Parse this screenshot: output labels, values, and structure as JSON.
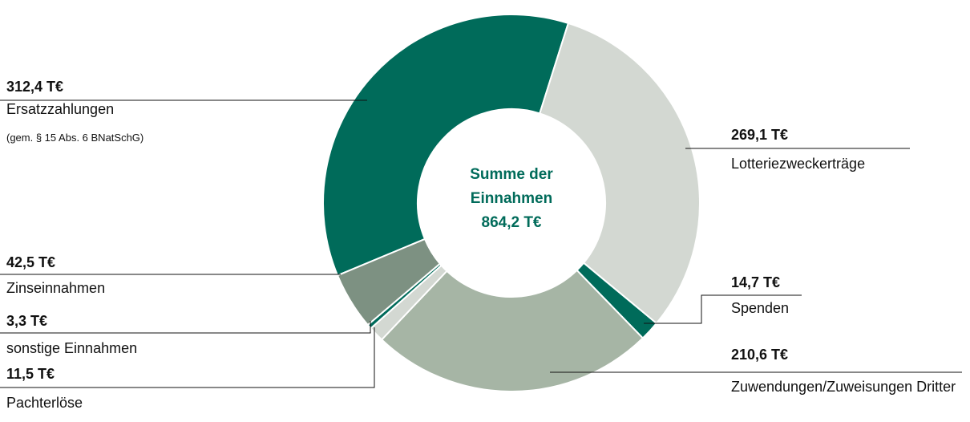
{
  "chart_data": {
    "type": "donut",
    "center_text": [
      "Summe der Einnahmen",
      "864,2 T€"
    ],
    "categories": [
      "Ersatzzahlungen",
      "Lotteriezweckerträge",
      "Spenden",
      "Zuwendungen/Zuweisungen Dritter",
      "Pachterlöse",
      "sonstige Einnahmen",
      "Zinseinnahmen"
    ],
    "values": [
      312.4,
      269.1,
      14.7,
      210.6,
      11.5,
      3.3,
      42.5
    ],
    "value_labels": [
      "312,4 T€",
      "269,1 T€",
      "14,7 T€",
      "210,6 T€",
      "11,5 T€",
      "3,3 T€",
      "42,5 T€"
    ],
    "colors": [
      "#006b5a",
      "#d3d8d2",
      "#006b5a",
      "#a6b5a5",
      "#d3d8d2",
      "#006b5a",
      "#7d9182"
    ],
    "annotations": [
      "(gem. § 15 Abs. 6 BNatSchG)"
    ]
  }
}
